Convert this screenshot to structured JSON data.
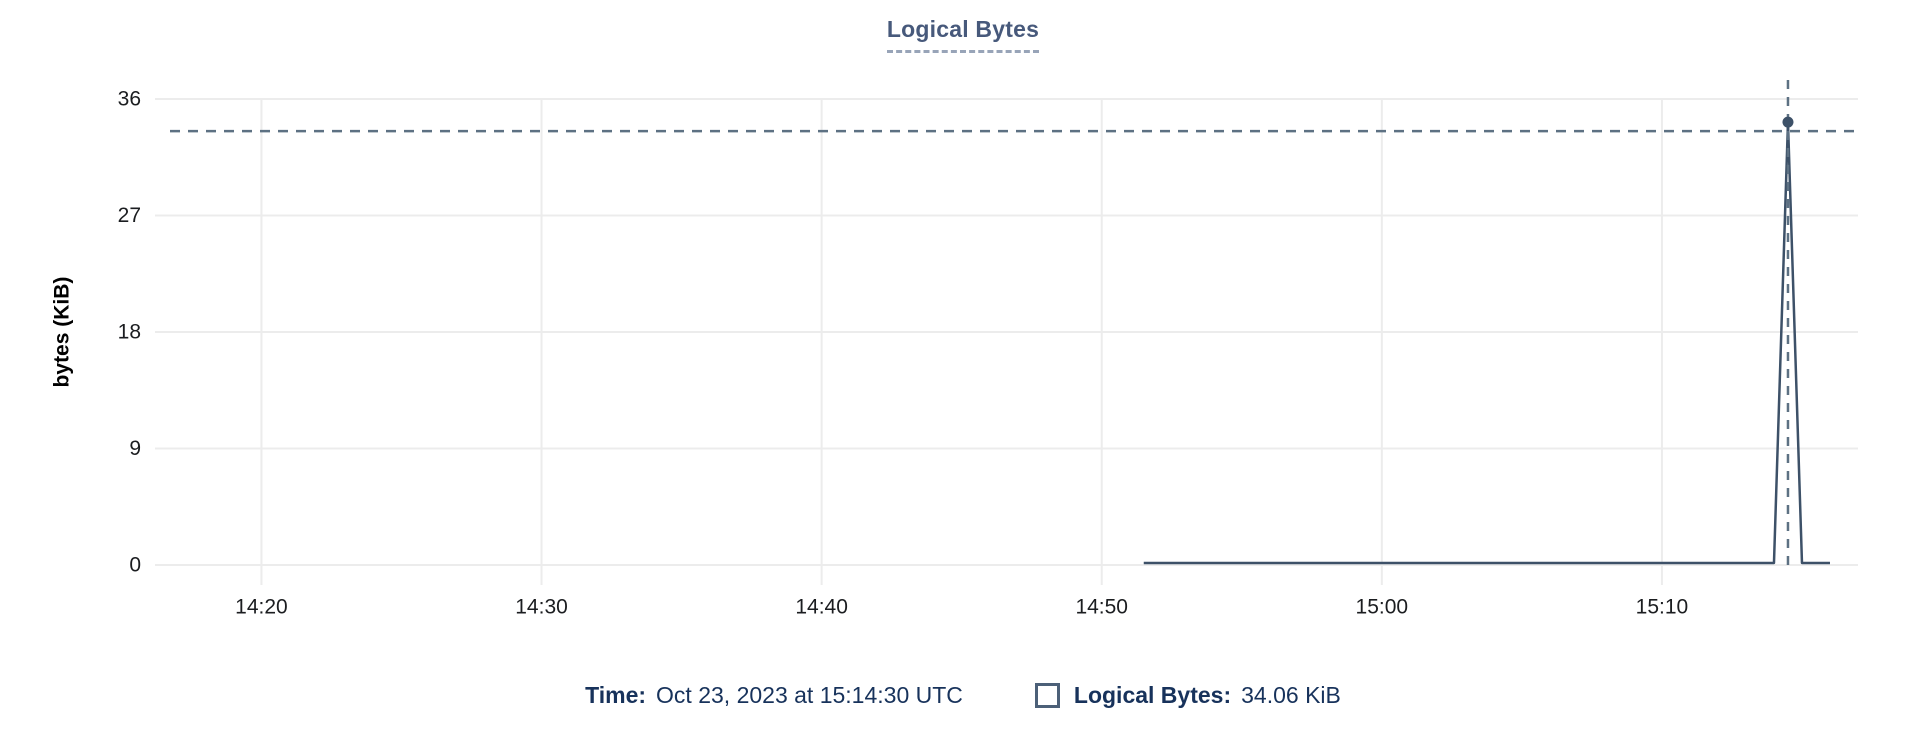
{
  "title": "Logical Bytes",
  "chart_data": {
    "type": "line",
    "title": "Logical Bytes",
    "xlabel": "",
    "ylabel": "bytes (KiB)",
    "grid": true,
    "x_unit": "minutes after 14:00 UTC",
    "x_domain_minutes": [
      16.2,
      77.0
    ],
    "x_tick_minutes": [
      20,
      30,
      40,
      50,
      60,
      70
    ],
    "x_tick_labels": [
      "14:20",
      "14:30",
      "14:40",
      "14:50",
      "15:00",
      "15:10"
    ],
    "y_ticks": [
      0,
      9,
      18,
      27,
      36
    ],
    "ylim": [
      0,
      36
    ],
    "series": [
      {
        "name": "Logical Bytes",
        "color": "#3d5168",
        "points_x_minutes": [
          51.5,
          74.0,
          74.5,
          75.0,
          76.0
        ],
        "points_y_kib": [
          0,
          0,
          34.06,
          0,
          0
        ]
      }
    ],
    "highlight_point": {
      "series": "Logical Bytes",
      "x_minutes": 74.5,
      "time_utc": "15:14:30",
      "y_kib": 34.06,
      "value_label": "34.06 KiB"
    },
    "legend_position": "bottom"
  },
  "tooltip": {
    "time_label": "Time:",
    "time_value": "Oct 23, 2023 at 15:14:30 UTC",
    "series_label": "Logical Bytes:",
    "series_value": "34.06 KiB"
  },
  "colors": {
    "title_text": "#47597b",
    "title_underline": "#98a4b8",
    "series_line": "#3d5168",
    "crosshair": "#5d7183",
    "gridline": "#ececec",
    "axis_tick_text": "#1b1d20",
    "footer_text": "#17325b",
    "legend_swatch_border": "#4c6078",
    "background": "#ffffff"
  }
}
